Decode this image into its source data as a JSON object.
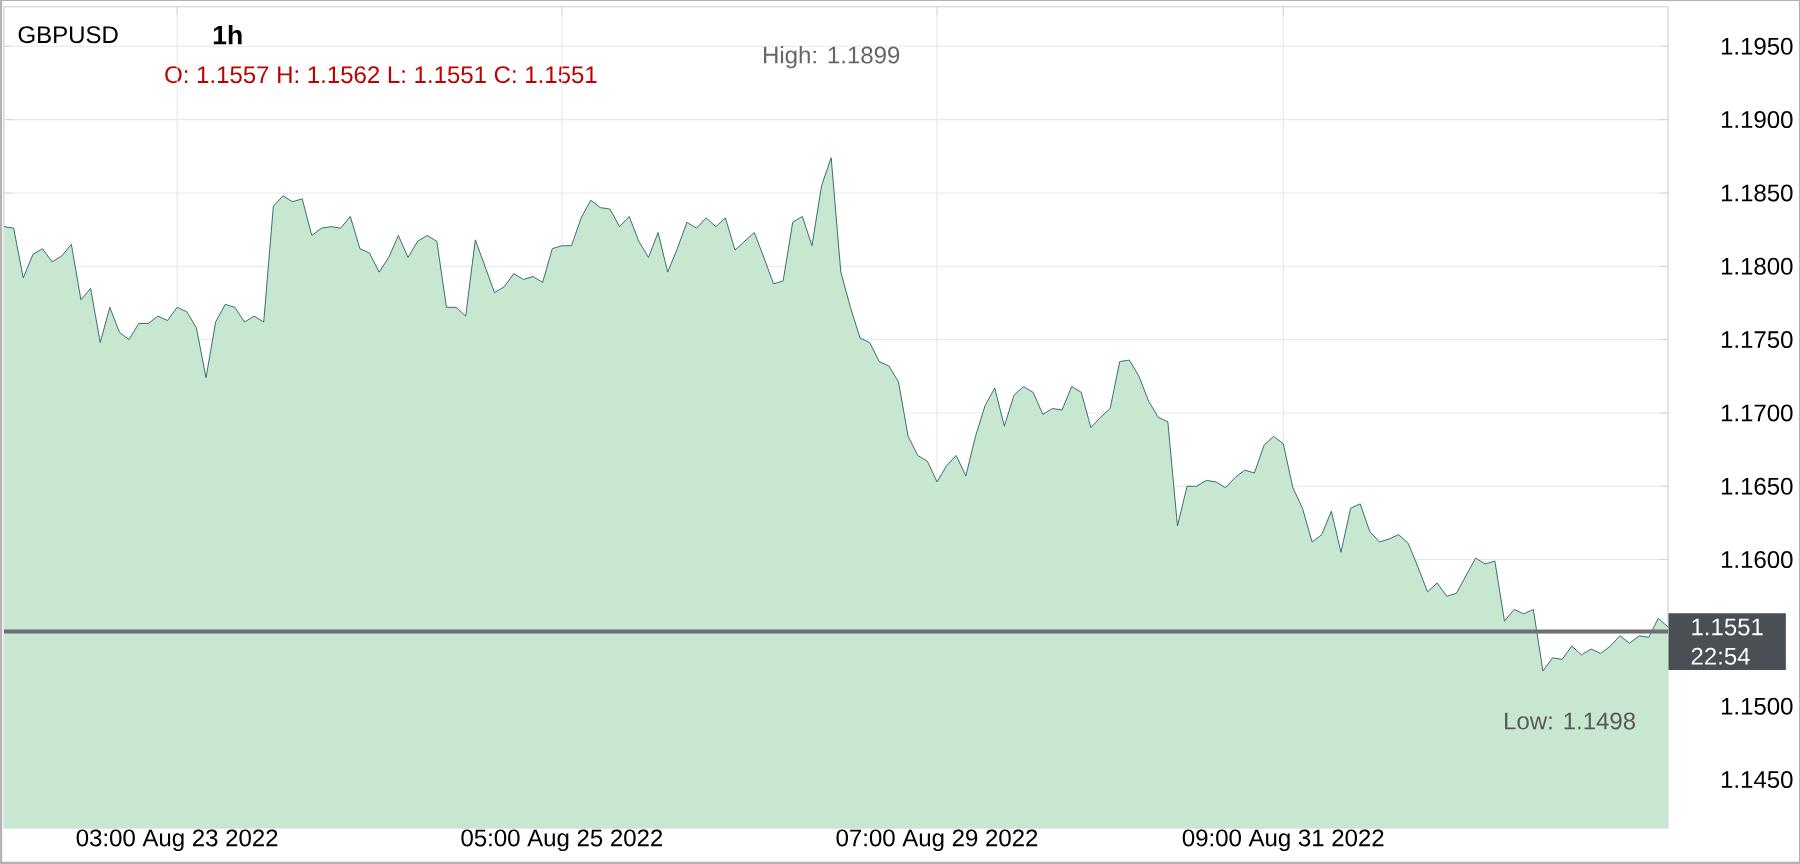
{
  "chart_data": {
    "type": "area",
    "title": "GBPUSD",
    "subtitle": "O: 1.1557 H: 1.1562 L: 1.1551 C: 1.1551",
    "annotations": [
      "High: 1.1899",
      "Low: 1.1498",
      "22:54",
      "1h"
    ],
    "categories": [
      null,
      null,
      null,
      null,
      null,
      null,
      null,
      null,
      null,
      null,
      null,
      null,
      null,
      null,
      null,
      null,
      null,
      null,
      "03:00 Aug 23 2022",
      null,
      null,
      null,
      null,
      null,
      null,
      null,
      null,
      null,
      null,
      null,
      null,
      null,
      null,
      null,
      null,
      null,
      null,
      null,
      null,
      null,
      null,
      null,
      null,
      null,
      null,
      null,
      null,
      null,
      null,
      null,
      null,
      null,
      null,
      null,
      null,
      null,
      null,
      null,
      "05:00 Aug 25 2022",
      null,
      null,
      null,
      null,
      null,
      null,
      null,
      null,
      null,
      null,
      null,
      null,
      null,
      null,
      null,
      null,
      null,
      null,
      null,
      null,
      null,
      null,
      null,
      null,
      null,
      null,
      null,
      null,
      null,
      null,
      null,
      null,
      null,
      null,
      null,
      null,
      null,
      null,
      "07:00 Aug 29 2022",
      null,
      null,
      null,
      null,
      null,
      null,
      null,
      null,
      null,
      null,
      null,
      null,
      null,
      null,
      null,
      null,
      null,
      null,
      null,
      null,
      null,
      null,
      null,
      null,
      null,
      null,
      null,
      null,
      null,
      null,
      null,
      null,
      null,
      null,
      null,
      "09:00 Aug 31 2022",
      null,
      null,
      null,
      null,
      null,
      null,
      null,
      null,
      null,
      null,
      null,
      null,
      null,
      null,
      null,
      null,
      null,
      null,
      null,
      null,
      null,
      null,
      null,
      null,
      null,
      null,
      null,
      null,
      null,
      null,
      null,
      null,
      null,
      null,
      null,
      null,
      null,
      null,
      null,
      null
    ],
    "series": [
      {
        "color": "#2f6468",
        "values": [
          1.1827,
          1.1826,
          1.1792,
          1.1808,
          1.1812,
          1.1803,
          1.1807,
          1.1815,
          1.1777,
          1.1785,
          1.1748,
          1.1772,
          1.1755,
          1.175,
          1.1761,
          1.1761,
          1.1766,
          1.1763,
          1.1772,
          1.1769,
          1.1758,
          1.1724,
          1.1762,
          1.1774,
          1.1772,
          1.1762,
          1.1766,
          1.1762,
          1.1841,
          1.1848,
          1.1844,
          1.1846,
          1.1821,
          1.1826,
          1.1827,
          1.1826,
          1.1834,
          1.1812,
          1.1809,
          1.1796,
          1.1806,
          1.1821,
          1.1806,
          1.1817,
          1.1821,
          1.1817,
          1.1772,
          1.1772,
          1.1766,
          1.1818,
          1.18,
          1.1782,
          1.1786,
          1.1795,
          1.1791,
          1.1793,
          1.1789,
          1.1812,
          1.1814,
          1.1814,
          1.1833,
          1.1845,
          1.184,
          1.1839,
          1.1827,
          1.1834,
          1.1817,
          1.1806,
          1.1823,
          1.1796,
          1.1812,
          1.183,
          1.1826,
          1.1833,
          1.1827,
          1.1833,
          1.1811,
          1.1817,
          1.1823,
          1.1806,
          1.1788,
          1.179,
          1.183,
          1.1834,
          1.1814,
          1.1855,
          1.1874,
          1.1796,
          1.1772,
          1.1751,
          1.1748,
          1.1735,
          1.1732,
          1.1721,
          1.1684,
          1.1671,
          1.1667,
          1.1653,
          1.1664,
          1.1671,
          1.1657,
          1.1684,
          1.1705,
          1.1717,
          1.1691,
          1.1712,
          1.1718,
          1.1714,
          1.1699,
          1.1703,
          1.1702,
          1.1718,
          1.1714,
          1.169,
          1.1697,
          1.1703,
          1.1735,
          1.1736,
          1.1725,
          1.1708,
          1.1697,
          1.1694,
          1.1623,
          1.165,
          1.165,
          1.1654,
          1.1653,
          1.1649,
          1.1656,
          1.1661,
          1.1659,
          1.1678,
          1.1684,
          1.1679,
          1.1649,
          1.1635,
          1.1612,
          1.1617,
          1.1633,
          1.1605,
          1.1635,
          1.1638,
          1.1619,
          1.1612,
          1.1614,
          1.1617,
          1.1611,
          1.1595,
          1.1578,
          1.1584,
          1.1575,
          1.1577,
          1.1589,
          1.1601,
          1.1597,
          1.1599,
          1.1558,
          1.1566,
          1.1563,
          1.1566,
          1.1524,
          1.1533,
          1.1532,
          1.1541,
          1.1535,
          1.1539,
          1.1536,
          1.1541,
          1.1548,
          1.1543,
          1.1548,
          1.1547,
          1.156,
          1.1554
        ]
      }
    ],
    "ylim": [
      1.1417,
      1.1977
    ],
    "yticks": [
      {
        "value": 1.145,
        "label": "1.1450"
      },
      {
        "value": 1.15,
        "label": "1.1500"
      },
      {
        "value": 1.155,
        "label": null
      },
      {
        "value": 1.16,
        "label": "1.1600"
      },
      {
        "value": 1.165,
        "label": "1.1650"
      },
      {
        "value": 1.17,
        "label": "1.1700"
      },
      {
        "value": 1.175,
        "label": "1.1750"
      },
      {
        "value": 1.18,
        "label": "1.1800"
      },
      {
        "value": 1.185,
        "label": "1.1850"
      },
      {
        "value": 1.19,
        "label": "1.1900"
      },
      {
        "value": 1.195,
        "label": "1.1950"
      }
    ],
    "ref_lines": [
      {
        "axis": "y",
        "value": 1.1551,
        "label": "1.1551",
        "color": "#6b6f75"
      }
    ],
    "grid": true
  }
}
